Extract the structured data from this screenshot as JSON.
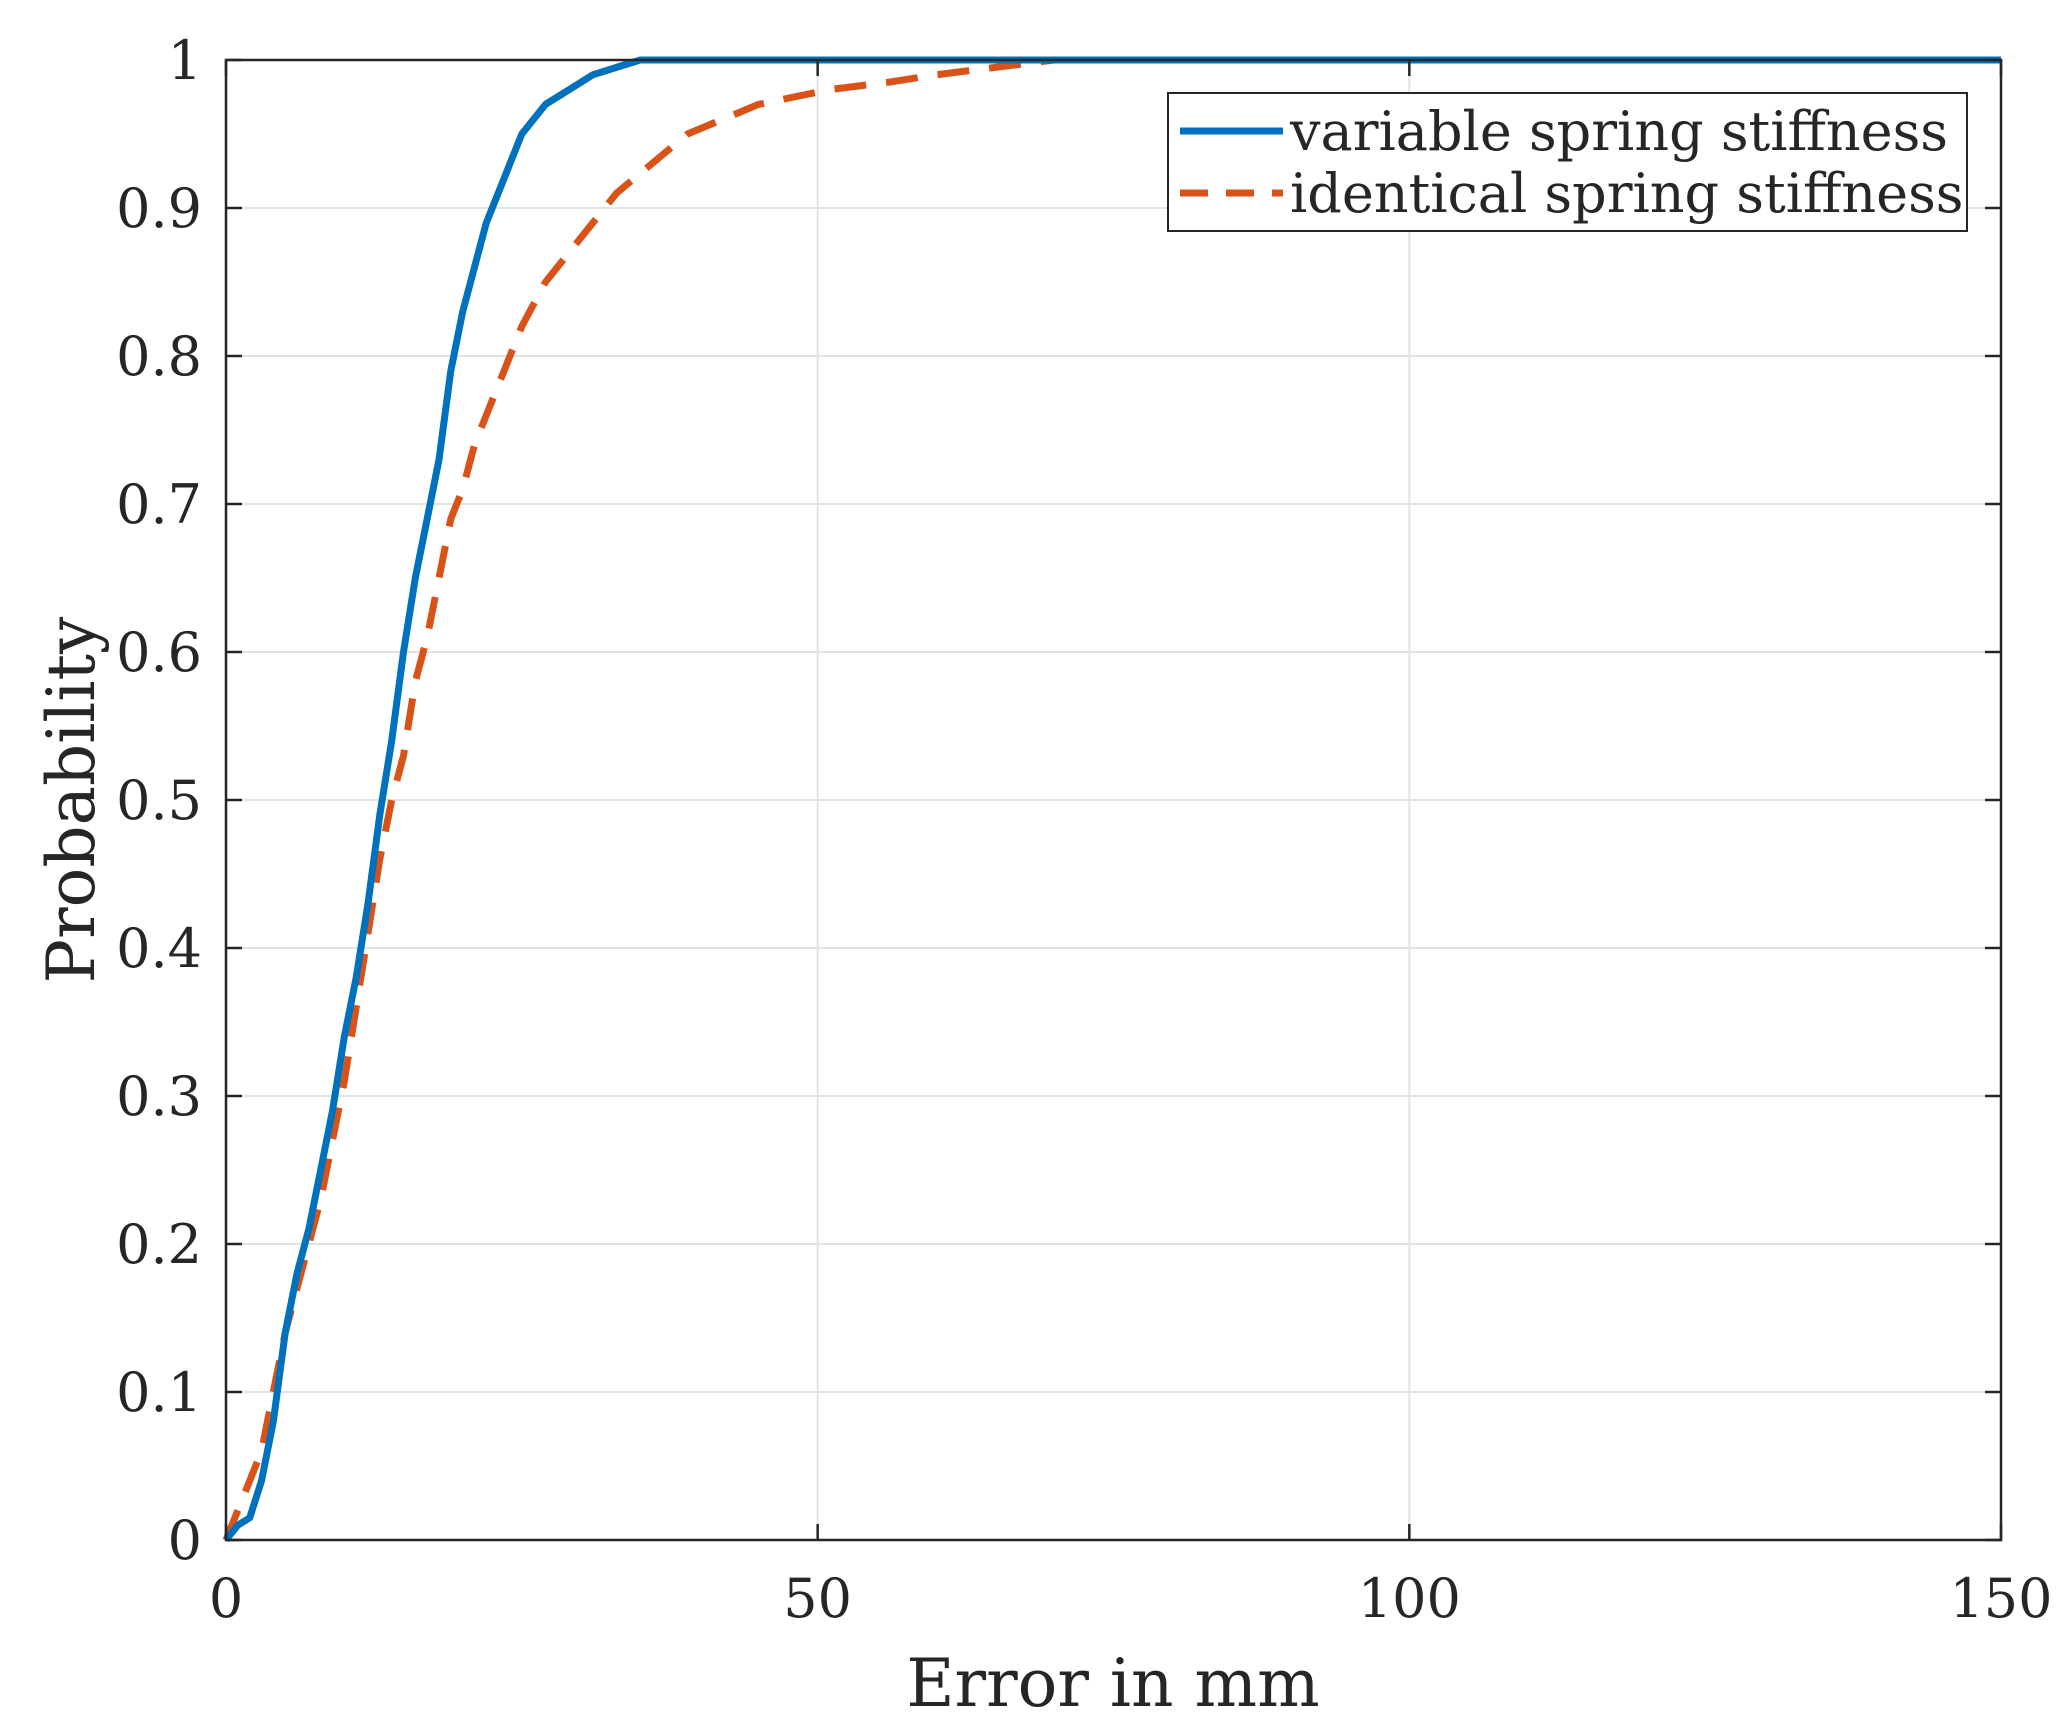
{
  "chart_data": {
    "type": "line",
    "title": "",
    "xlabel": "Error in mm",
    "ylabel": "Probability",
    "xlim": [
      0,
      150
    ],
    "ylim": [
      0,
      1
    ],
    "xticks": [
      "0",
      "50",
      "100",
      "150"
    ],
    "yticks": [
      "0",
      "0.1",
      "0.2",
      "0.3",
      "0.4",
      "0.5",
      "0.6",
      "0.7",
      "0.8",
      "0.9",
      "1"
    ],
    "grid": true,
    "legend_position": "top-right",
    "series": [
      {
        "name": "variable spring stiffness",
        "color": "#0072BD",
        "style": "solid",
        "points": [
          [
            0,
            0
          ],
          [
            1,
            0.01
          ],
          [
            2,
            0.015
          ],
          [
            3,
            0.04
          ],
          [
            4,
            0.08
          ],
          [
            5,
            0.14
          ],
          [
            6,
            0.18
          ],
          [
            7,
            0.21
          ],
          [
            8,
            0.25
          ],
          [
            9,
            0.29
          ],
          [
            10,
            0.34
          ],
          [
            11,
            0.38
          ],
          [
            12,
            0.43
          ],
          [
            13,
            0.49
          ],
          [
            14,
            0.54
          ],
          [
            15,
            0.6
          ],
          [
            16,
            0.65
          ],
          [
            17,
            0.69
          ],
          [
            18,
            0.73
          ],
          [
            19,
            0.79
          ],
          [
            20,
            0.83
          ],
          [
            21,
            0.86
          ],
          [
            22,
            0.89
          ],
          [
            23,
            0.91
          ],
          [
            24,
            0.93
          ],
          [
            25,
            0.95
          ],
          [
            27,
            0.97
          ],
          [
            29,
            0.98
          ],
          [
            31,
            0.99
          ],
          [
            33,
            0.995
          ],
          [
            35,
            1
          ],
          [
            150,
            1
          ]
        ]
      },
      {
        "name": "identical spring stiffness",
        "color": "#D95319",
        "style": "dashed",
        "points": [
          [
            0,
            0
          ],
          [
            1,
            0.02
          ],
          [
            2,
            0.04
          ],
          [
            3,
            0.06
          ],
          [
            4,
            0.1
          ],
          [
            5,
            0.14
          ],
          [
            6,
            0.17
          ],
          [
            7,
            0.2
          ],
          [
            8,
            0.23
          ],
          [
            9,
            0.27
          ],
          [
            10,
            0.31
          ],
          [
            11,
            0.36
          ],
          [
            12,
            0.41
          ],
          [
            13,
            0.46
          ],
          [
            14,
            0.5
          ],
          [
            15,
            0.53
          ],
          [
            16,
            0.58
          ],
          [
            17,
            0.61
          ],
          [
            18,
            0.65
          ],
          [
            19,
            0.69
          ],
          [
            20,
            0.71
          ],
          [
            21,
            0.74
          ],
          [
            22,
            0.76
          ],
          [
            23,
            0.78
          ],
          [
            24,
            0.8
          ],
          [
            25,
            0.82
          ],
          [
            27,
            0.85
          ],
          [
            30,
            0.88
          ],
          [
            33,
            0.91
          ],
          [
            36,
            0.93
          ],
          [
            39,
            0.95
          ],
          [
            42,
            0.96
          ],
          [
            45,
            0.97
          ],
          [
            48,
            0.975
          ],
          [
            51,
            0.98
          ],
          [
            56,
            0.985
          ],
          [
            60,
            0.99
          ],
          [
            65,
            0.995
          ],
          [
            70,
            1
          ],
          [
            150,
            1
          ]
        ]
      }
    ]
  }
}
